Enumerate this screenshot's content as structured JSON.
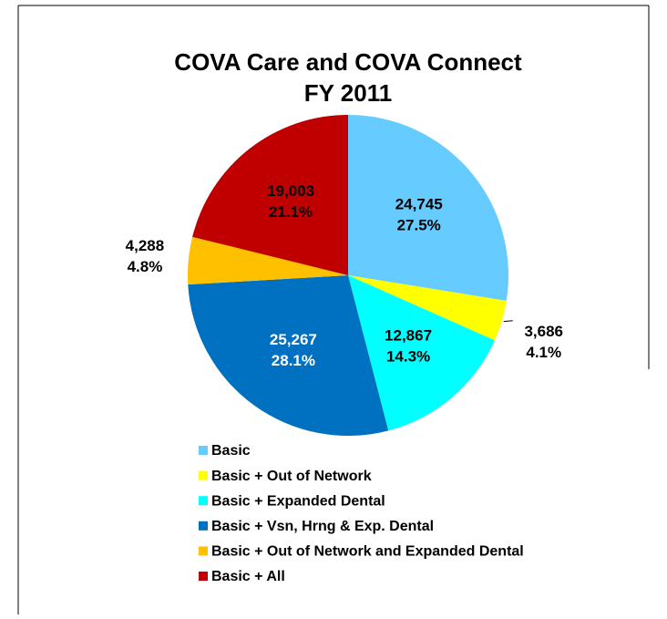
{
  "chart_data": {
    "type": "pie",
    "title": [
      "COVA Care and COVA Connect",
      "FY 2011"
    ],
    "categories": [
      "Basic",
      "Basic + Out of Network",
      "Basic + Expanded Dental",
      "Basic + Vsn, Hrng & Exp. Dental",
      "Basic + Out of Network and Expanded Dental",
      "Basic + All"
    ],
    "values": [
      24745,
      3686,
      12867,
      25267,
      4288,
      19003
    ],
    "value_labels": [
      "24,745",
      "3,686",
      "12,867",
      "25,267",
      "4,288",
      "19,003"
    ],
    "percent_labels": [
      "27.5%",
      "4.1%",
      "14.3%",
      "28.1%",
      "4.8%",
      "21.1%"
    ],
    "colors": [
      "#66ccff",
      "#ffff00",
      "#00ffff",
      "#0070c0",
      "#ffc000",
      "#c00000"
    ],
    "label_colors": [
      "#000000",
      "#000000",
      "#000000",
      "#ffffff",
      "#000000",
      "#000000"
    ],
    "legend": "bottom"
  }
}
